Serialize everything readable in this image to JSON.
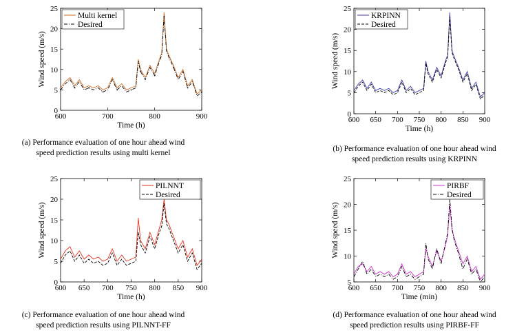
{
  "chart_data": [
    {
      "type": "line",
      "ylabel": "Wind speed (m/s)",
      "xlabel": "Time (h)",
      "xlim": [
        600,
        900
      ],
      "ylim": [
        0,
        25
      ],
      "xticks": [
        "600",
        "700",
        "800",
        "900"
      ],
      "yticks": [
        "0",
        "5",
        "10",
        "15",
        "20",
        "25"
      ],
      "legend_position": "top-left",
      "x": [
        600,
        610,
        620,
        630,
        640,
        650,
        660,
        670,
        680,
        690,
        700,
        710,
        720,
        730,
        740,
        750,
        760,
        765,
        770,
        780,
        790,
        800,
        810,
        815,
        820,
        825,
        830,
        840,
        850,
        860,
        870,
        880,
        890,
        900
      ],
      "series": [
        {
          "name": "Multi kernel",
          "color": "#d2691e",
          "style": "solid",
          "values": [
            5.5,
            7,
            8,
            6,
            7.5,
            5.5,
            6,
            5.5,
            6,
            5,
            5.5,
            8,
            5.5,
            6.5,
            5,
            5.5,
            6,
            12.5,
            10,
            8,
            11,
            9,
            12.5,
            14,
            24,
            15,
            13.5,
            11,
            8,
            10,
            6,
            7.5,
            4,
            5
          ]
        },
        {
          "name": "Desired",
          "color": "#000000",
          "style": "dashdot",
          "values": [
            5,
            6.5,
            7.5,
            5.5,
            7,
            5,
            5.5,
            5,
            5.5,
            4.5,
            5,
            7.5,
            5,
            6,
            4.5,
            5,
            5.5,
            12,
            9.5,
            7.5,
            10.5,
            8.5,
            12,
            13.5,
            23,
            14.5,
            13,
            10.5,
            7.5,
            9.5,
            5.5,
            7,
            3.5,
            4.5
          ]
        }
      ]
    },
    {
      "type": "line",
      "ylabel": "Wind speed (m/s)",
      "xlabel": "Time (h)",
      "xlim": [
        600,
        900
      ],
      "ylim": [
        0,
        25
      ],
      "xticks": [
        "600",
        "650",
        "700",
        "750",
        "800",
        "850",
        "900"
      ],
      "yticks": [
        "0",
        "5",
        "10",
        "15",
        "20",
        "25"
      ],
      "legend_position": "top-left",
      "x": [
        600,
        610,
        620,
        630,
        640,
        650,
        660,
        670,
        680,
        690,
        700,
        710,
        720,
        730,
        740,
        750,
        760,
        765,
        770,
        780,
        790,
        800,
        810,
        815,
        820,
        825,
        830,
        840,
        850,
        860,
        870,
        880,
        890,
        900
      ],
      "series": [
        {
          "name": "KRPINN",
          "color": "#3b3bb0",
          "style": "solid",
          "values": [
            5.5,
            7,
            8,
            6,
            7.5,
            5.5,
            6,
            5.5,
            6,
            5,
            5.5,
            8,
            5.5,
            6.5,
            5,
            5.5,
            6,
            12.5,
            10,
            8,
            11,
            9,
            12.5,
            14,
            24,
            15,
            13.5,
            11,
            8,
            10,
            6,
            7.5,
            4,
            5
          ]
        },
        {
          "name": "Desired",
          "color": "#000000",
          "style": "dashed",
          "values": [
            5,
            6.5,
            7.5,
            5.5,
            7,
            5,
            5.5,
            5,
            5.5,
            4.5,
            5,
            7.5,
            5,
            6,
            4.5,
            5,
            5.5,
            12,
            9.5,
            7.5,
            10.5,
            8.5,
            12,
            13.5,
            23,
            14.5,
            13,
            10.5,
            7.5,
            9.5,
            5.5,
            7,
            3.5,
            4.5
          ]
        }
      ]
    },
    {
      "type": "line",
      "ylabel": "Wind speed (m/s)",
      "xlabel": "Time (h)",
      "xlim": [
        600,
        900
      ],
      "ylim": [
        0,
        25
      ],
      "xticks": [
        "600",
        "650",
        "700",
        "750",
        "800",
        "850",
        "900"
      ],
      "yticks": [
        "0",
        "5",
        "10",
        "15",
        "20",
        "25"
      ],
      "legend_position": "top-right",
      "x": [
        600,
        610,
        620,
        630,
        640,
        650,
        660,
        670,
        680,
        690,
        700,
        710,
        720,
        730,
        740,
        750,
        760,
        765,
        770,
        780,
        790,
        800,
        810,
        815,
        820,
        825,
        830,
        840,
        850,
        860,
        870,
        880,
        890,
        900
      ],
      "series": [
        {
          "name": "PILNNT",
          "color": "#e8321e",
          "style": "solid",
          "values": [
            5.5,
            7.5,
            8.5,
            6,
            7.5,
            5.5,
            6.5,
            5.5,
            6,
            5,
            5.5,
            8,
            5,
            6.5,
            5,
            5.5,
            6,
            15.5,
            10,
            8,
            12,
            9,
            13,
            15,
            20,
            15,
            14,
            11,
            8,
            10,
            6,
            8,
            4,
            5.5
          ]
        },
        {
          "name": "Desired",
          "color": "#000000",
          "style": "dashed",
          "values": [
            4.5,
            6.5,
            7.5,
            5,
            6.5,
            4.5,
            5.5,
            4.5,
            5,
            4,
            4.5,
            7,
            4,
            5.5,
            4,
            4.5,
            5,
            12,
            9,
            7,
            11,
            8,
            12,
            13.5,
            19,
            14,
            13,
            10,
            7,
            9,
            5,
            7,
            3,
            4.5
          ]
        }
      ]
    },
    {
      "type": "line",
      "ylabel": "Wind speed (m/s)",
      "xlabel": "Time (min)",
      "xlim": [
        600,
        900
      ],
      "ylim": [
        5,
        25
      ],
      "xticks": [
        "600",
        "650",
        "700",
        "750",
        "800",
        "850",
        "900"
      ],
      "yticks": [
        "5",
        "10",
        "15",
        "20",
        "25"
      ],
      "legend_position": "top-right",
      "x": [
        600,
        610,
        620,
        630,
        640,
        650,
        660,
        670,
        680,
        690,
        700,
        710,
        720,
        730,
        740,
        750,
        760,
        765,
        770,
        780,
        790,
        800,
        810,
        815,
        820,
        825,
        830,
        840,
        850,
        860,
        870,
        880,
        890,
        900
      ],
      "series": [
        {
          "name": "PIRBF",
          "color": "#cc33cc",
          "style": "solid",
          "values": [
            6.5,
            8,
            8.5,
            7,
            8,
            6.5,
            7,
            6.5,
            7,
            6,
            6.5,
            8.5,
            6.5,
            7,
            6,
            6.5,
            7,
            11.5,
            10,
            8,
            11,
            9,
            12,
            14,
            20,
            15,
            13.5,
            11,
            8.5,
            10,
            7,
            8,
            5.5,
            6.5
          ]
        },
        {
          "name": "Desired",
          "color": "#000000",
          "style": "dashdot",
          "values": [
            6,
            7.5,
            9,
            6.5,
            7.5,
            6,
            6.5,
            6,
            6.5,
            5.5,
            6,
            8,
            6,
            6.5,
            5.5,
            6,
            6.5,
            12.5,
            9.5,
            7.5,
            11.5,
            8.5,
            12.5,
            14.5,
            21,
            15.5,
            13,
            10.5,
            7.5,
            9.5,
            6.5,
            7.5,
            5,
            6
          ]
        }
      ]
    }
  ],
  "captions": {
    "a": {
      "line1": "(a) Performance evaluation of one hour ahead wind",
      "line2": "speed prediction results using multi kernel"
    },
    "b": {
      "line1": "(b) Performance evaluation of one hour ahead wind",
      "line2": "speed prediction results using KRPINN"
    },
    "c": {
      "line1": "(c) Performance evaluation of one hour ahead wind",
      "line2": "speed prediction results using PILNNT-FF"
    },
    "d": {
      "line1": "(d) Performance evaluation of one hour ahead wind",
      "line2": "speed prediction results using PIRBF-FF"
    }
  }
}
